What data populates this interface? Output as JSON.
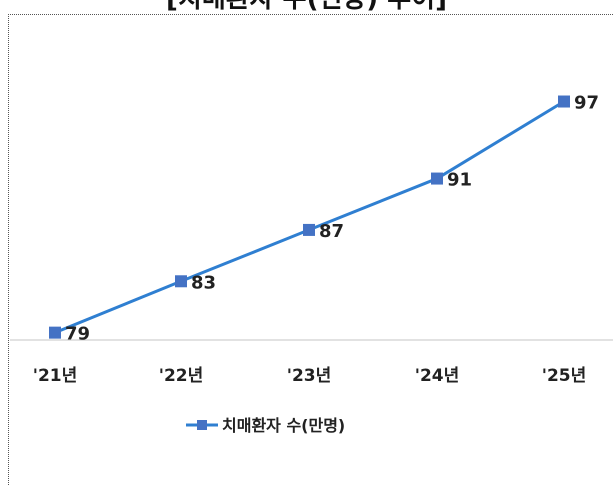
{
  "chart_data": {
    "type": "line",
    "title": "[치매환자 수(전망) 추이]",
    "categories": [
      "'21년",
      "'22년",
      "'23년",
      "'24년",
      "'25년"
    ],
    "series": [
      {
        "name": "치매환자 수(만명)",
        "values": [
          79,
          83,
          87,
          91,
          97
        ],
        "color": "#2f7fd1",
        "marker_color": "#4472c4"
      }
    ],
    "data_labels": [
      "79",
      "83",
      "87",
      "91",
      "97"
    ],
    "ylim": [
      75,
      100
    ],
    "grid": false,
    "legend_position": "bottom"
  }
}
